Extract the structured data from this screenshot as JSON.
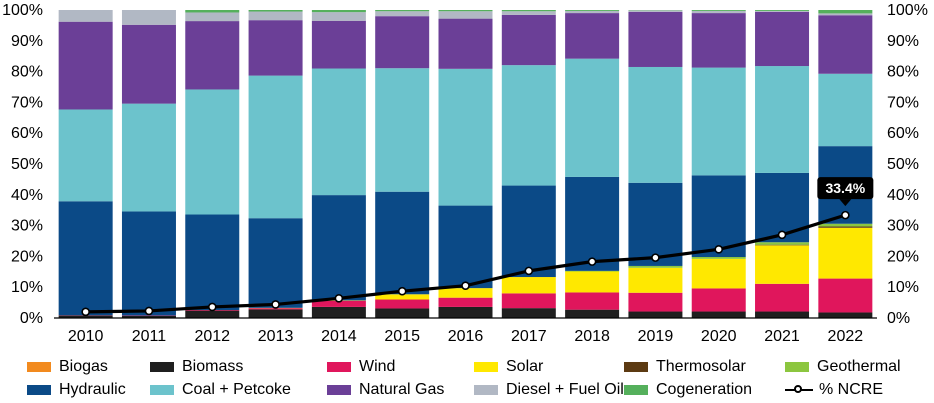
{
  "chart_data": {
    "type": "bar",
    "stacked": true,
    "categories": [
      "2010",
      "2011",
      "2012",
      "2013",
      "2014",
      "2015",
      "2016",
      "2017",
      "2018",
      "2019",
      "2020",
      "2021",
      "2022"
    ],
    "y_tick_labels": [
      "0%",
      "10%",
      "20%",
      "30%",
      "40%",
      "50%",
      "60%",
      "70%",
      "80%",
      "90%",
      "100%"
    ],
    "ylim": [
      0,
      100
    ],
    "grid": false,
    "legend_position": "bottom",
    "series": [
      {
        "name": "Biogas",
        "color": "#f28a1e",
        "values": [
          0.1,
          0.1,
          0.1,
          0.1,
          0.1,
          0.1,
          0.1,
          0.1,
          0.1,
          0.1,
          0.1,
          0.1,
          0.1
        ]
      },
      {
        "name": "Biomass",
        "color": "#1f1f1f",
        "values": [
          0.7,
          0.6,
          2.3,
          2.7,
          3.5,
          3.0,
          3.5,
          3.1,
          2.6,
          2.0,
          2.0,
          2.0,
          1.7
        ]
      },
      {
        "name": "Wind",
        "color": "#e0165c",
        "values": [
          0.1,
          0.1,
          0.2,
          0.4,
          2.0,
          2.9,
          3.0,
          4.8,
          5.6,
          6.1,
          7.5,
          9.0,
          11.0
        ]
      },
      {
        "name": "Solar",
        "color": "#ffe800",
        "values": [
          0.0,
          0.0,
          0.0,
          0.1,
          0.1,
          1.7,
          3.1,
          5.3,
          6.8,
          8.1,
          9.6,
          12.5,
          16.5
        ]
      },
      {
        "name": "Thermosolar",
        "color": "#5c3a12",
        "values": [
          0.0,
          0.0,
          0.0,
          0.0,
          0.0,
          0.0,
          0.0,
          0.0,
          0.0,
          0.0,
          0.0,
          0.2,
          0.4
        ]
      },
      {
        "name": "Geothermal",
        "color": "#8cc63f",
        "values": [
          0.0,
          0.0,
          0.0,
          0.0,
          0.0,
          0.0,
          0.0,
          0.0,
          0.2,
          0.6,
          0.6,
          0.8,
          0.9
        ]
      },
      {
        "name": "Hydraulic",
        "color": "#0b4a87",
        "values": [
          37.0,
          33.8,
          31.0,
          29.1,
          34.2,
          33.3,
          26.8,
          29.7,
          30.5,
          27.0,
          26.5,
          22.5,
          25.2
        ]
      },
      {
        "name": "Coal + Petcoke",
        "color": "#6cc3cc",
        "values": [
          29.8,
          35.0,
          40.6,
          46.3,
          41.1,
          40.1,
          44.4,
          39.1,
          38.4,
          37.6,
          35.0,
          34.7,
          23.5
        ]
      },
      {
        "name": "Natural Gas",
        "color": "#6b3f97",
        "values": [
          28.5,
          25.6,
          22.2,
          18.0,
          15.5,
          16.9,
          16.3,
          16.3,
          14.8,
          17.9,
          17.7,
          17.6,
          19.0
        ]
      },
      {
        "name": "Diesel + Fuel Oil",
        "color": "#b1b8c4",
        "values": [
          3.8,
          4.8,
          2.8,
          2.8,
          2.8,
          1.6,
          2.4,
          1.2,
          0.7,
          0.5,
          0.7,
          0.3,
          0.6
        ]
      },
      {
        "name": "Cogeneration",
        "color": "#55b05c",
        "values": [
          0.0,
          0.0,
          0.8,
          0.5,
          0.7,
          0.4,
          0.4,
          0.4,
          0.3,
          0.1,
          0.3,
          0.3,
          1.1
        ]
      }
    ],
    "line_series": {
      "name": "% NCRE",
      "values": [
        2.0,
        2.3,
        3.6,
        4.4,
        6.4,
        8.7,
        10.5,
        15.3,
        18.3,
        19.6,
        22.3,
        27.0,
        33.4
      ]
    },
    "annotation": {
      "text": "33.4%",
      "category": "2022"
    }
  }
}
